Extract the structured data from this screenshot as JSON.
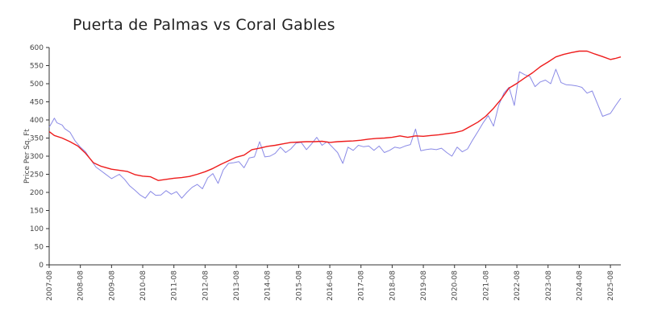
{
  "chart_data": {
    "type": "line",
    "title": "Puerta de Palmas vs Coral Gables",
    "xlabel": "",
    "ylabel": "Price Per Sq. Ft",
    "ylim": [
      0,
      600
    ],
    "yticks": [
      0,
      50,
      100,
      150,
      200,
      250,
      300,
      350,
      400,
      450,
      500,
      550,
      600
    ],
    "x_range": [
      "2007-08",
      "2025-12"
    ],
    "xticks": [
      "2007-08",
      "2008-08",
      "2009-08",
      "2010-08",
      "2011-08",
      "2012-08",
      "2013-08",
      "2014-08",
      "2015-08",
      "2016-08",
      "2017-08",
      "2018-08",
      "2019-08",
      "2020-08",
      "2021-08",
      "2022-08",
      "2023-08",
      "2024-08",
      "2025-08"
    ],
    "grid": false,
    "legend": "none",
    "series": [
      {
        "color": "#ee1c1c",
        "points": [
          [
            "2007-08",
            368
          ],
          [
            "2007-10",
            357
          ],
          [
            "2008-01",
            350
          ],
          [
            "2008-04",
            340
          ],
          [
            "2008-07",
            328
          ],
          [
            "2008-10",
            308
          ],
          [
            "2009-01",
            282
          ],
          [
            "2009-04",
            272
          ],
          [
            "2009-08",
            264
          ],
          [
            "2009-11",
            261
          ],
          [
            "2010-02",
            258
          ],
          [
            "2010-05",
            249
          ],
          [
            "2010-08",
            245
          ],
          [
            "2010-11",
            243
          ],
          [
            "2011-02",
            233
          ],
          [
            "2011-05",
            236
          ],
          [
            "2011-08",
            239
          ],
          [
            "2011-11",
            241
          ],
          [
            "2012-02",
            244
          ],
          [
            "2012-05",
            250
          ],
          [
            "2012-08",
            257
          ],
          [
            "2012-11",
            266
          ],
          [
            "2013-02",
            277
          ],
          [
            "2013-05",
            287
          ],
          [
            "2013-08",
            297
          ],
          [
            "2013-11",
            303
          ],
          [
            "2014-02",
            318
          ],
          [
            "2014-05",
            322
          ],
          [
            "2014-08",
            327
          ],
          [
            "2014-11",
            330
          ],
          [
            "2015-02",
            334
          ],
          [
            "2015-05",
            338
          ],
          [
            "2015-08",
            339
          ],
          [
            "2015-11",
            340
          ],
          [
            "2016-02",
            340
          ],
          [
            "2016-05",
            341
          ],
          [
            "2016-08",
            338
          ],
          [
            "2016-11",
            340
          ],
          [
            "2017-02",
            341
          ],
          [
            "2017-05",
            342
          ],
          [
            "2017-08",
            344
          ],
          [
            "2017-11",
            347
          ],
          [
            "2018-02",
            349
          ],
          [
            "2018-05",
            350
          ],
          [
            "2018-08",
            352
          ],
          [
            "2018-11",
            356
          ],
          [
            "2019-02",
            352
          ],
          [
            "2019-05",
            356
          ],
          [
            "2019-08",
            355
          ],
          [
            "2019-11",
            357
          ],
          [
            "2020-02",
            359
          ],
          [
            "2020-05",
            362
          ],
          [
            "2020-08",
            365
          ],
          [
            "2020-11",
            370
          ],
          [
            "2021-02",
            382
          ],
          [
            "2021-05",
            394
          ],
          [
            "2021-08",
            410
          ],
          [
            "2021-11",
            432
          ],
          [
            "2022-02",
            458
          ],
          [
            "2022-05",
            488
          ],
          [
            "2022-08",
            501
          ],
          [
            "2022-11",
            516
          ],
          [
            "2023-02",
            530
          ],
          [
            "2023-05",
            547
          ],
          [
            "2023-08",
            560
          ],
          [
            "2023-11",
            574
          ],
          [
            "2024-02",
            581
          ],
          [
            "2024-05",
            586
          ],
          [
            "2024-08",
            590
          ],
          [
            "2024-11",
            590
          ],
          [
            "2025-02",
            582
          ],
          [
            "2025-05",
            575
          ],
          [
            "2025-08",
            567
          ],
          [
            "2025-10",
            570
          ],
          [
            "2025-12",
            574
          ]
        ]
      },
      {
        "color": "#8a8ae6",
        "points": [
          [
            "2007-08",
            380
          ],
          [
            "2007-09",
            392
          ],
          [
            "2007-10",
            405
          ],
          [
            "2007-11",
            392
          ],
          [
            "2008-01",
            386
          ],
          [
            "2008-02",
            376
          ],
          [
            "2008-04",
            366
          ],
          [
            "2008-06",
            342
          ],
          [
            "2008-08",
            325
          ],
          [
            "2008-10",
            312
          ],
          [
            "2008-12",
            290
          ],
          [
            "2009-02",
            270
          ],
          [
            "2009-05",
            254
          ],
          [
            "2009-08",
            238
          ],
          [
            "2009-11",
            250
          ],
          [
            "2010-01",
            236
          ],
          [
            "2010-03",
            218
          ],
          [
            "2010-05",
            206
          ],
          [
            "2010-07",
            193
          ],
          [
            "2010-09",
            184
          ],
          [
            "2010-11",
            203
          ],
          [
            "2011-01",
            192
          ],
          [
            "2011-03",
            193
          ],
          [
            "2011-05",
            205
          ],
          [
            "2011-07",
            195
          ],
          [
            "2011-09",
            202
          ],
          [
            "2011-11",
            184
          ],
          [
            "2012-01",
            200
          ],
          [
            "2012-03",
            214
          ],
          [
            "2012-05",
            222
          ],
          [
            "2012-07",
            210
          ],
          [
            "2012-09",
            240
          ],
          [
            "2012-11",
            252
          ],
          [
            "2013-01",
            225
          ],
          [
            "2013-03",
            262
          ],
          [
            "2013-05",
            280
          ],
          [
            "2013-07",
            282
          ],
          [
            "2013-09",
            285
          ],
          [
            "2013-11",
            268
          ],
          [
            "2014-01",
            295
          ],
          [
            "2014-03",
            298
          ],
          [
            "2014-05",
            340
          ],
          [
            "2014-07",
            298
          ],
          [
            "2014-09",
            300
          ],
          [
            "2014-11",
            308
          ],
          [
            "2015-01",
            325
          ],
          [
            "2015-03",
            310
          ],
          [
            "2015-05",
            320
          ],
          [
            "2015-07",
            336
          ],
          [
            "2015-09",
            338
          ],
          [
            "2015-11",
            318
          ],
          [
            "2016-01",
            334
          ],
          [
            "2016-03",
            352
          ],
          [
            "2016-05",
            330
          ],
          [
            "2016-07",
            340
          ],
          [
            "2016-09",
            325
          ],
          [
            "2016-11",
            310
          ],
          [
            "2017-01",
            280
          ],
          [
            "2017-03",
            325
          ],
          [
            "2017-05",
            316
          ],
          [
            "2017-07",
            330
          ],
          [
            "2017-09",
            326
          ],
          [
            "2017-11",
            328
          ],
          [
            "2018-01",
            316
          ],
          [
            "2018-03",
            328
          ],
          [
            "2018-05",
            310
          ],
          [
            "2018-07",
            316
          ],
          [
            "2018-09",
            325
          ],
          [
            "2018-11",
            322
          ],
          [
            "2019-01",
            328
          ],
          [
            "2019-03",
            332
          ],
          [
            "2019-05",
            375
          ],
          [
            "2019-07",
            315
          ],
          [
            "2019-09",
            318
          ],
          [
            "2019-11",
            320
          ],
          [
            "2020-01",
            318
          ],
          [
            "2020-03",
            322
          ],
          [
            "2020-05",
            310
          ],
          [
            "2020-07",
            300
          ],
          [
            "2020-09",
            325
          ],
          [
            "2020-11",
            312
          ],
          [
            "2021-01",
            320
          ],
          [
            "2021-03",
            345
          ],
          [
            "2021-05",
            368
          ],
          [
            "2021-07",
            392
          ],
          [
            "2021-09",
            412
          ],
          [
            "2021-11",
            383
          ],
          [
            "2022-01",
            440
          ],
          [
            "2022-03",
            474
          ],
          [
            "2022-05",
            490
          ],
          [
            "2022-07",
            440
          ],
          [
            "2022-09",
            533
          ],
          [
            "2022-11",
            525
          ],
          [
            "2023-01",
            520
          ],
          [
            "2023-03",
            492
          ],
          [
            "2023-05",
            505
          ],
          [
            "2023-07",
            510
          ],
          [
            "2023-09",
            500
          ],
          [
            "2023-11",
            540
          ],
          [
            "2024-01",
            503
          ],
          [
            "2024-03",
            497
          ],
          [
            "2024-05",
            496
          ],
          [
            "2024-07",
            494
          ],
          [
            "2024-09",
            490
          ],
          [
            "2024-11",
            474
          ],
          [
            "2025-01",
            480
          ],
          [
            "2025-03",
            445
          ],
          [
            "2025-05",
            410
          ],
          [
            "2025-08",
            418
          ],
          [
            "2025-10",
            440
          ],
          [
            "2025-12",
            460
          ]
        ]
      }
    ]
  }
}
